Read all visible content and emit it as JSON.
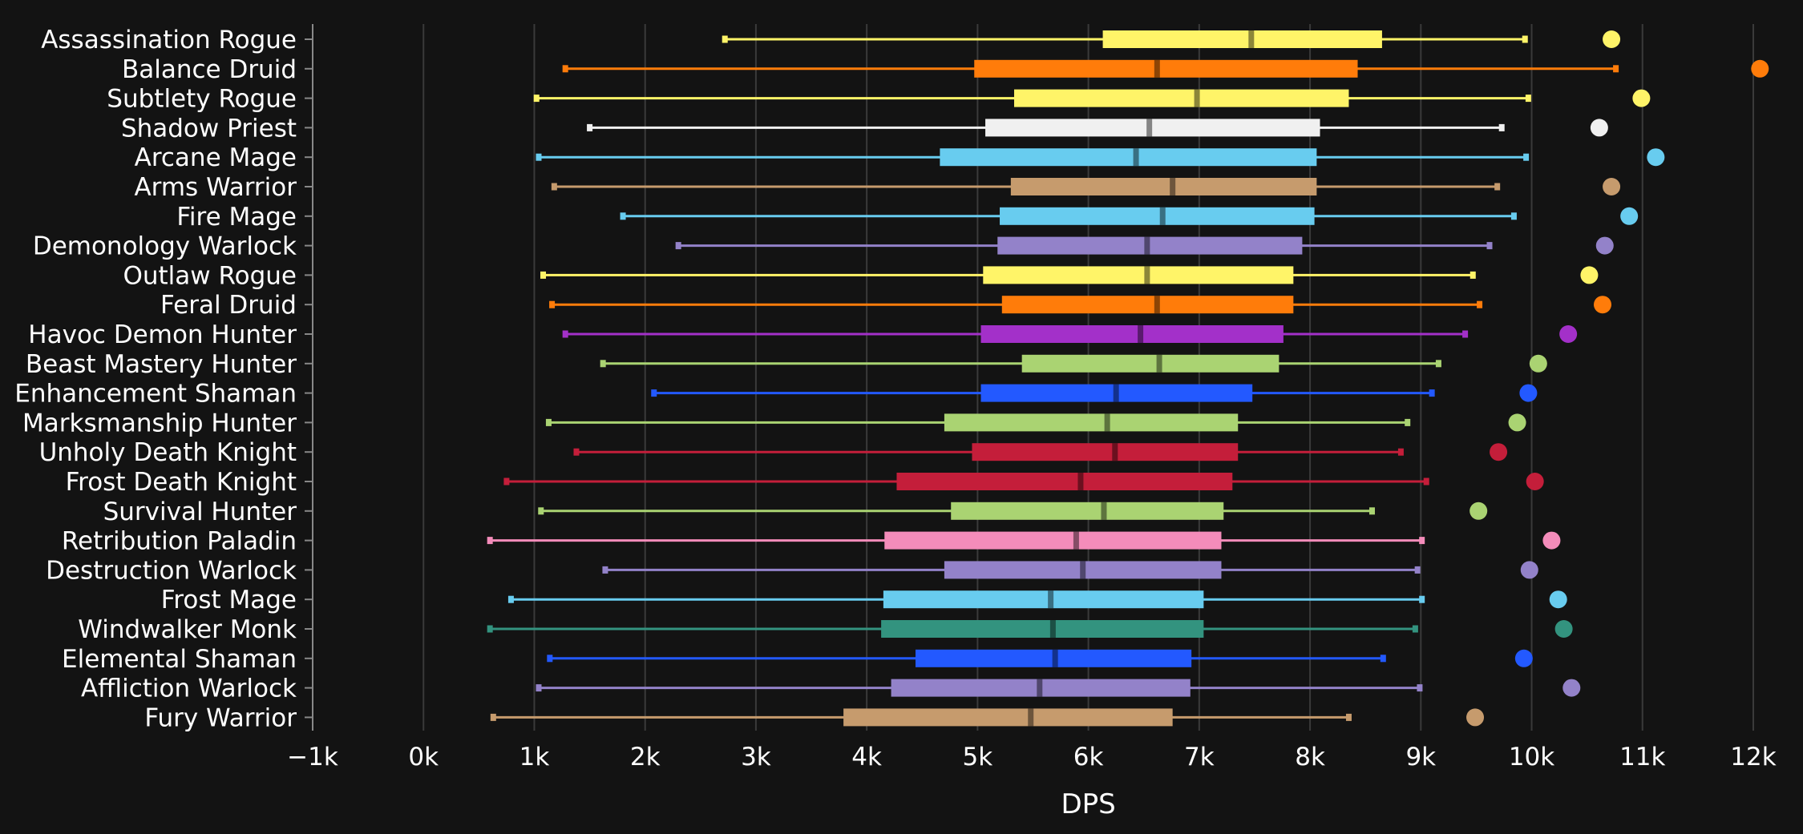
{
  "chart_data": {
    "type": "boxplot",
    "xlabel": "DPS",
    "xlim": [
      -1000,
      12000
    ],
    "x_ticks": [
      {
        "value": -1000,
        "label": "−1k"
      },
      {
        "value": 0,
        "label": "0k"
      },
      {
        "value": 1000,
        "label": "1k"
      },
      {
        "value": 2000,
        "label": "2k"
      },
      {
        "value": 3000,
        "label": "3k"
      },
      {
        "value": 4000,
        "label": "4k"
      },
      {
        "value": 5000,
        "label": "5k"
      },
      {
        "value": 6000,
        "label": "6k"
      },
      {
        "value": 7000,
        "label": "7k"
      },
      {
        "value": 8000,
        "label": "8k"
      },
      {
        "value": 9000,
        "label": "9k"
      },
      {
        "value": 10000,
        "label": "10k"
      },
      {
        "value": 11000,
        "label": "11k"
      },
      {
        "value": 12000,
        "label": "12k"
      }
    ],
    "grid": true,
    "series": [
      {
        "name": "Assassination Rogue",
        "color": "#fff468",
        "min": 2720,
        "q1": 6130,
        "median": 7470,
        "q3": 8650,
        "max": 9940,
        "outlier": 10720
      },
      {
        "name": "Balance Druid",
        "color": "#ff7c0a",
        "min": 1280,
        "q1": 4970,
        "median": 6620,
        "q3": 8430,
        "max": 10760,
        "outlier": 12060
      },
      {
        "name": "Subtlety Rogue",
        "color": "#fff468",
        "min": 1020,
        "q1": 5330,
        "median": 6980,
        "q3": 8350,
        "max": 9970,
        "outlier": 10990
      },
      {
        "name": "Shadow Priest",
        "color": "#f0f0f0",
        "min": 1500,
        "q1": 5070,
        "median": 6550,
        "q3": 8090,
        "max": 9730,
        "outlier": 10610
      },
      {
        "name": "Arcane Mage",
        "color": "#68ccef",
        "min": 1040,
        "q1": 4660,
        "median": 6430,
        "q3": 8060,
        "max": 9950,
        "outlier": 11120
      },
      {
        "name": "Arms Warrior",
        "color": "#c69b6d",
        "min": 1180,
        "q1": 5300,
        "median": 6760,
        "q3": 8060,
        "max": 9690,
        "outlier": 10720
      },
      {
        "name": "Fire Mage",
        "color": "#68ccef",
        "min": 1800,
        "q1": 5200,
        "median": 6670,
        "q3": 8040,
        "max": 9840,
        "outlier": 10880
      },
      {
        "name": "Demonology Warlock",
        "color": "#9382c9",
        "min": 2300,
        "q1": 5180,
        "median": 6530,
        "q3": 7930,
        "max": 9620,
        "outlier": 10660
      },
      {
        "name": "Outlaw Rogue",
        "color": "#fff468",
        "min": 1080,
        "q1": 5050,
        "median": 6530,
        "q3": 7850,
        "max": 9470,
        "outlier": 10520
      },
      {
        "name": "Feral Druid",
        "color": "#ff7c0a",
        "min": 1160,
        "q1": 5220,
        "median": 6620,
        "q3": 7850,
        "max": 9530,
        "outlier": 10640
      },
      {
        "name": "Havoc Demon Hunter",
        "color": "#a330c9",
        "min": 1280,
        "q1": 5030,
        "median": 6470,
        "q3": 7760,
        "max": 9400,
        "outlier": 10330
      },
      {
        "name": "Beast Mastery Hunter",
        "color": "#aad372",
        "min": 1620,
        "q1": 5400,
        "median": 6640,
        "q3": 7720,
        "max": 9160,
        "outlier": 10060
      },
      {
        "name": "Enhancement Shaman",
        "color": "#2359ff",
        "min": 2080,
        "q1": 5030,
        "median": 6250,
        "q3": 7480,
        "max": 9100,
        "outlier": 9970
      },
      {
        "name": "Marksmanship Hunter",
        "color": "#aad372",
        "min": 1130,
        "q1": 4700,
        "median": 6170,
        "q3": 7350,
        "max": 8880,
        "outlier": 9870
      },
      {
        "name": "Unholy Death Knight",
        "color": "#c41e3a",
        "min": 1380,
        "q1": 4950,
        "median": 6240,
        "q3": 7350,
        "max": 8820,
        "outlier": 9700
      },
      {
        "name": "Frost Death Knight",
        "color": "#c41e3a",
        "min": 750,
        "q1": 4270,
        "median": 5930,
        "q3": 7300,
        "max": 9050,
        "outlier": 10030
      },
      {
        "name": "Survival Hunter",
        "color": "#aad372",
        "min": 1060,
        "q1": 4760,
        "median": 6140,
        "q3": 7220,
        "max": 8560,
        "outlier": 9520
      },
      {
        "name": "Retribution Paladin",
        "color": "#f48cba",
        "min": 600,
        "q1": 4160,
        "median": 5890,
        "q3": 7200,
        "max": 9010,
        "outlier": 10180
      },
      {
        "name": "Destruction Warlock",
        "color": "#9382c9",
        "min": 1640,
        "q1": 4700,
        "median": 5950,
        "q3": 7200,
        "max": 8970,
        "outlier": 9980
      },
      {
        "name": "Frost Mage",
        "color": "#68ccef",
        "min": 790,
        "q1": 4150,
        "median": 5660,
        "q3": 7040,
        "max": 9010,
        "outlier": 10240
      },
      {
        "name": "Windwalker Monk",
        "color": "#33937f",
        "min": 600,
        "q1": 4130,
        "median": 5680,
        "q3": 7040,
        "max": 8950,
        "outlier": 10290
      },
      {
        "name": "Elemental Shaman",
        "color": "#2359ff",
        "min": 1140,
        "q1": 4440,
        "median": 5700,
        "q3": 6930,
        "max": 8660,
        "outlier": 9930
      },
      {
        "name": "Affliction Warlock",
        "color": "#9382c9",
        "min": 1040,
        "q1": 4220,
        "median": 5560,
        "q3": 6920,
        "max": 8990,
        "outlier": 10360
      },
      {
        "name": "Fury Warrior",
        "color": "#c69b6d",
        "min": 630,
        "q1": 3790,
        "median": 5480,
        "q3": 6760,
        "max": 8350,
        "outlier": 9490
      }
    ]
  }
}
